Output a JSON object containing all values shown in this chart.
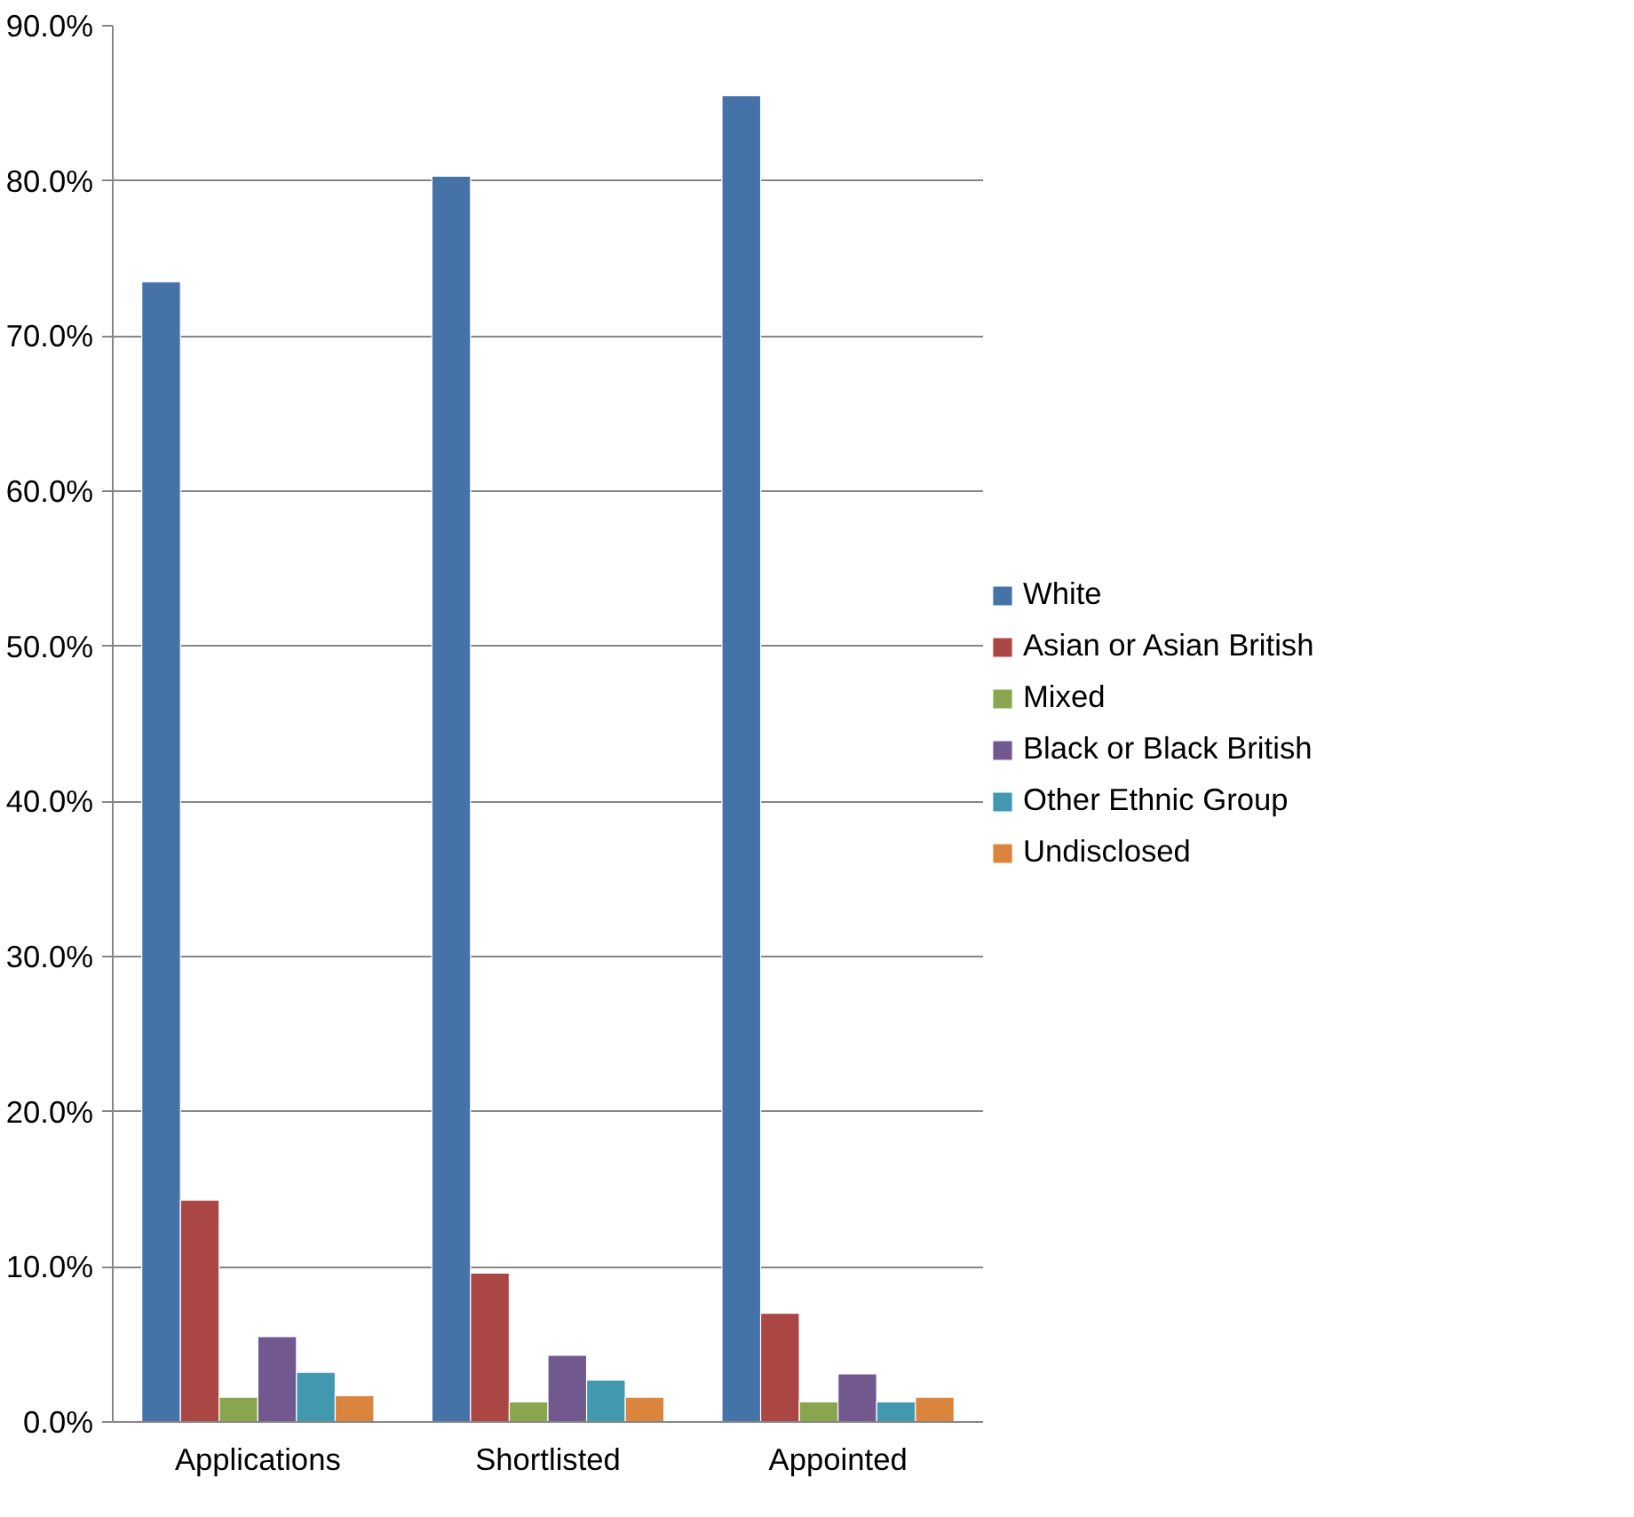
{
  "chart_data": {
    "type": "bar",
    "categories": [
      "Applications",
      "Shortlisted",
      "Appointed"
    ],
    "series": [
      {
        "name": "White",
        "color": "#4572a7",
        "values": [
          73.5,
          80.3,
          85.5
        ]
      },
      {
        "name": "Asian or Asian British",
        "color": "#aa4643",
        "values": [
          14.3,
          9.6,
          7.0
        ]
      },
      {
        "name": "Mixed",
        "color": "#89a54e",
        "values": [
          1.6,
          1.3,
          1.3
        ]
      },
      {
        "name": "Black or Black British",
        "color": "#71588f",
        "values": [
          5.5,
          4.3,
          3.1
        ]
      },
      {
        "name": "Other Ethnic Group",
        "color": "#4198af",
        "values": [
          3.2,
          2.7,
          1.3
        ]
      },
      {
        "name": "Undisclosed",
        "color": "#db843d",
        "values": [
          1.7,
          1.6,
          1.6
        ]
      }
    ],
    "ylim": [
      0,
      90
    ],
    "yticks": [
      {
        "value": 0,
        "label": "0.0%"
      },
      {
        "value": 10,
        "label": "10.0%"
      },
      {
        "value": 20,
        "label": "20.0%"
      },
      {
        "value": 30,
        "label": "30.0%"
      },
      {
        "value": 40,
        "label": "40.0%"
      },
      {
        "value": 50,
        "label": "50.0%"
      },
      {
        "value": 60,
        "label": "60.0%"
      },
      {
        "value": 70,
        "label": "70.0%"
      },
      {
        "value": 80,
        "label": "80.0%"
      },
      {
        "value": 90,
        "label": "90.0%"
      }
    ],
    "grid": "y",
    "legend": "right"
  }
}
